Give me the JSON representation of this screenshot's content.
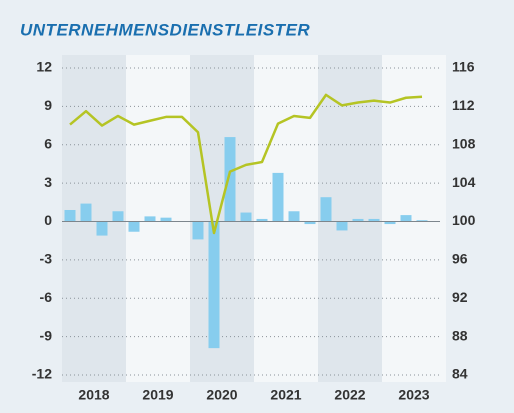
{
  "chart_data": {
    "type": "bar_line",
    "title": "UNTERNEHMENSDIENSTLEISTER",
    "year_labels": [
      "2018",
      "2019",
      "2020",
      "2021",
      "2022",
      "2023"
    ],
    "series": [
      {
        "name": null,
        "type": "bar",
        "axis": "y",
        "color": "#87cdee",
        "values": [
          0.9,
          1.4,
          -1.1,
          0.8,
          -0.8,
          0.4,
          0.3,
          0,
          -1.4,
          -9.9,
          6.6,
          0.7,
          0.2,
          3.8,
          0.8,
          -0.2,
          1.9,
          -0.7,
          0.2,
          0.2,
          -0.2,
          0.5,
          0.1
        ]
      },
      {
        "name": null,
        "type": "line",
        "axis": "y2",
        "color": "#b5c424",
        "values": [
          110.1,
          111.5,
          110.0,
          111.0,
          110.1,
          110.5,
          110.9,
          110.9,
          109.3,
          98.8,
          105.2,
          105.9,
          106.2,
          110.2,
          111.0,
          110.8,
          113.2,
          112.1,
          112.4,
          112.6,
          112.4,
          112.9,
          113.0
        ]
      }
    ],
    "ylim": [
      -12,
      12
    ],
    "yticks": [
      12,
      9,
      6,
      3,
      0,
      -3,
      -6,
      -9,
      -12
    ],
    "y2lim": [
      84,
      116
    ],
    "y2ticks": [
      116,
      112,
      108,
      104,
      100,
      96,
      92,
      88,
      84
    ],
    "grid": true
  }
}
